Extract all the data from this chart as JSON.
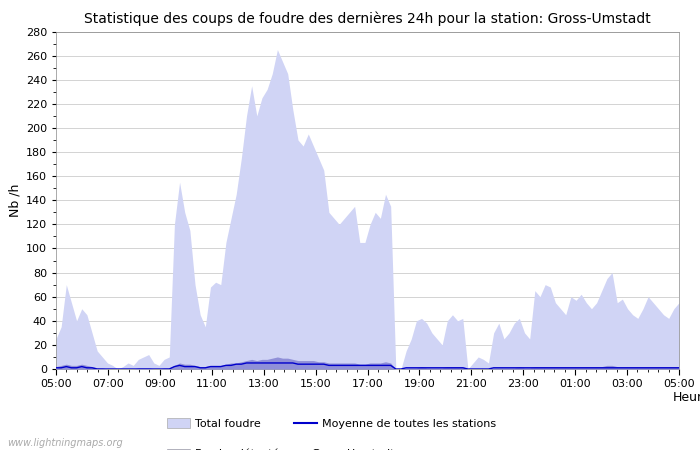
{
  "title": "Statistique des coups de foudre des dernières 24h pour la station: Gross-Umstadt",
  "xlabel": "Heure",
  "ylabel": "Nb /h",
  "watermark": "www.lightningmaps.org",
  "ylim": [
    0,
    280
  ],
  "yticks": [
    0,
    20,
    40,
    60,
    80,
    100,
    120,
    140,
    160,
    180,
    200,
    220,
    240,
    260,
    280
  ],
  "x_labels": [
    "05:00",
    "07:00",
    "09:00",
    "11:00",
    "13:00",
    "15:00",
    "17:00",
    "19:00",
    "21:00",
    "23:00",
    "01:00",
    "03:00",
    "05:00"
  ],
  "total_foudre_color": "#d0d4f5",
  "detected_color": "#9090d8",
  "moyenne_color": "#0000cc",
  "background_color": "#ffffff",
  "grid_color": "#cccccc",
  "total_foudre": [
    25,
    35,
    70,
    55,
    40,
    50,
    45,
    30,
    15,
    10,
    5,
    3,
    0,
    2,
    5,
    3,
    8,
    10,
    12,
    5,
    3,
    8,
    10,
    120,
    155,
    130,
    115,
    70,
    45,
    35,
    68,
    72,
    70,
    105,
    125,
    145,
    175,
    210,
    235,
    210,
    225,
    232,
    245,
    265,
    255,
    245,
    215,
    190,
    185,
    195,
    185,
    175,
    165,
    130,
    125,
    120,
    125,
    130,
    135,
    105,
    105,
    120,
    130,
    125,
    145,
    135,
    0,
    0,
    15,
    25,
    40,
    42,
    38,
    30,
    25,
    20,
    40,
    45,
    40,
    42,
    0,
    5,
    10,
    8,
    5,
    30,
    38,
    25,
    30,
    38,
    42,
    30,
    25,
    65,
    60,
    70,
    68,
    55,
    50,
    45,
    60,
    57,
    62,
    55,
    50,
    55,
    65,
    75,
    80,
    55,
    58,
    50,
    45,
    42,
    50,
    60,
    55,
    50,
    45,
    42,
    50,
    55
  ],
  "detected_foudre": [
    2,
    3,
    4,
    3,
    3,
    4,
    3,
    2,
    1,
    1,
    0,
    0,
    0,
    0,
    0,
    0,
    1,
    1,
    1,
    0,
    0,
    1,
    1,
    3,
    5,
    4,
    4,
    3,
    2,
    2,
    3,
    3,
    3,
    4,
    5,
    5,
    6,
    7,
    8,
    7,
    8,
    8,
    9,
    10,
    9,
    9,
    8,
    7,
    7,
    7,
    7,
    6,
    6,
    5,
    5,
    5,
    5,
    5,
    5,
    4,
    4,
    5,
    5,
    5,
    6,
    5,
    0,
    0,
    1,
    1,
    1,
    2,
    1,
    1,
    1,
    1,
    2,
    2,
    2,
    2,
    0,
    0,
    0,
    0,
    0,
    1,
    1,
    1,
    1,
    1,
    2,
    1,
    1,
    2,
    2,
    2,
    2,
    2,
    2,
    2,
    2,
    2,
    2,
    2,
    2,
    2,
    2,
    3,
    3,
    2,
    2,
    2,
    2,
    2,
    2,
    2,
    2,
    2,
    2,
    2,
    2,
    2
  ],
  "moyenne": [
    1,
    1,
    2,
    1,
    1,
    2,
    1,
    1,
    0,
    0,
    0,
    0,
    0,
    0,
    0,
    0,
    0,
    0,
    0,
    0,
    0,
    0,
    0,
    2,
    3,
    2,
    2,
    2,
    1,
    1,
    2,
    2,
    2,
    3,
    3,
    4,
    4,
    5,
    5,
    5,
    5,
    5,
    5,
    5,
    5,
    5,
    5,
    4,
    4,
    4,
    4,
    4,
    4,
    3,
    3,
    3,
    3,
    3,
    3,
    3,
    3,
    3,
    3,
    3,
    3,
    3,
    0,
    0,
    1,
    1,
    1,
    1,
    1,
    1,
    1,
    1,
    1,
    1,
    1,
    1,
    0,
    0,
    0,
    0,
    0,
    1,
    1,
    1,
    1,
    1,
    1,
    1,
    1,
    1,
    1,
    1,
    1,
    1,
    1,
    1,
    1,
    1,
    1,
    1,
    1,
    1,
    1,
    1,
    1,
    1,
    1,
    1,
    1,
    1,
    1,
    1,
    1,
    1,
    1,
    1,
    1,
    1
  ],
  "n_points": 122,
  "legend_total_label": "Total foudre",
  "legend_detected_label": "Foudre détectée par Gross-Umstadt",
  "legend_moyenne_label": "Moyenne de toutes les stations",
  "title_fontsize": 10,
  "axis_fontsize": 9,
  "tick_fontsize": 8
}
